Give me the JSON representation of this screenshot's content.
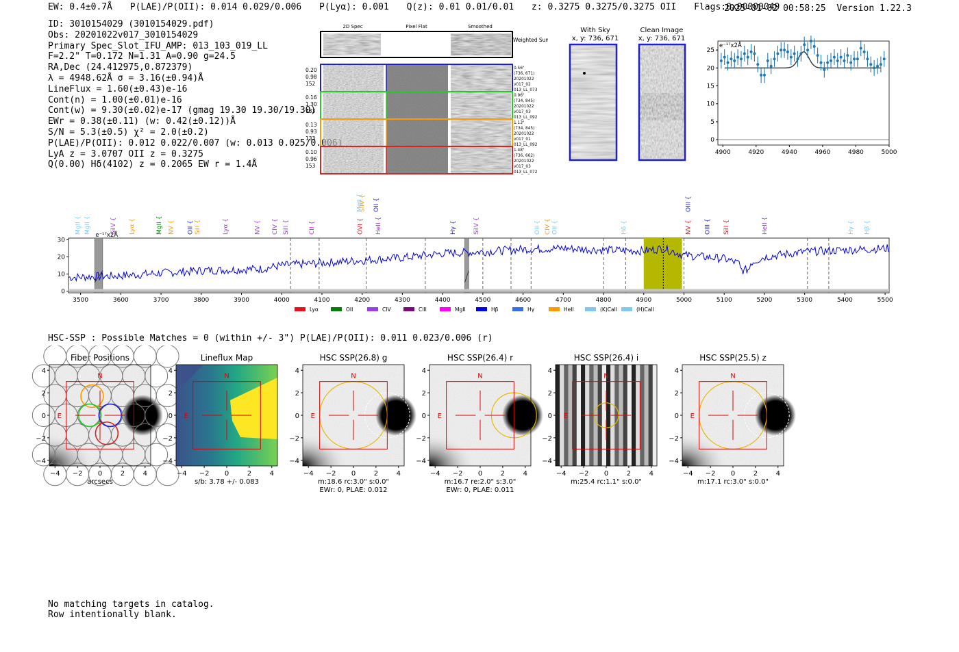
{
  "header": {
    "ew": "EW: 0.4±0.7Å",
    "plae": "P(LAE)/P(OII): 0.014 0.029/0.006",
    "plya": "P(Lyα): 0.001",
    "qz": "Q(z): 0.01 0.01/0.01",
    "z": "z: 0.3275 0.3275/0.3275 OII",
    "flags": "Flags:0x00000049",
    "timestamp": "2025-01-02 00:58:25",
    "version": "Version 1.22.3"
  },
  "info_lines": [
    "ID: 3010154029 (3010154029.pdf)",
    "Obs: 20201022v017_3010154029",
    "Primary Spec_Slot_IFU_AMP: 013_103_019_LL",
    "F=2.2\"  T=0.172  N=1.31  A=0.90  g=24.5",
    "RA,Dec (24.412975,0.872379)",
    "λ = 4948.62Å  σ = 3.16(±0.94)Å",
    "LineFlux = 1.60(±0.43)e-16",
    "Cont(n) = 1.00(±0.01)e-16",
    "Cont(w) = 9.30(±0.02)e-17 (gmag 19.30 19.30/19.30)",
    "EWr = 0.38(±0.11) (w: 0.42(±0.12))Å",
    "S/N = 5.3(±0.5)  χ² = 2.0(±0.2)",
    "P(LAE)/P(OII): 0.012 0.022/0.007 (w: 0.013 0.025/0.006)",
    "LyA z = 3.0707  OII z = 0.3275",
    "Q(0.00) Hδ(4102) z = 0.2065  EW r = 1.4Å"
  ],
  "cutouts": {
    "column_headers": [
      "2D Spec",
      "Pixel Flat",
      "Smoothed"
    ],
    "weighted_label": "Weighted Sum",
    "rows": [
      {
        "left": [
          "0.20",
          "0.98",
          "152"
        ],
        "right": [
          "0.56\"",
          "(736, 671)",
          "20201022",
          "v017_02",
          "013_LL_073"
        ],
        "color": "#1f1fd0"
      },
      {
        "left": [
          "0.16",
          "1.30",
          "133"
        ],
        "right": [
          "0.96\"",
          "(734, 845)",
          "20201022",
          "v017_03",
          "013_LL_092"
        ],
        "color": "#22cc22"
      },
      {
        "left": [
          "0.13",
          "0.93",
          "133"
        ],
        "right": [
          "1.13\"",
          "(734, 845)",
          "20201022",
          "v017_01",
          "013_LL_092"
        ],
        "color": "#ff9900"
      },
      {
        "left": [
          "0.10",
          "0.96",
          "153"
        ],
        "right": [
          "1.48\"",
          "(736, 662)",
          "20201022",
          "v017_03",
          "013_LL_072"
        ],
        "color": "#dd2222"
      }
    ]
  },
  "sky_images": {
    "with_sky_title": "With Sky",
    "with_sky_coords": "x, y: 736, 671",
    "clean_title": "Clean Image",
    "clean_coords": "x, y: 736, 671"
  },
  "chart_data": [
    {
      "name": "zoom_spectrum",
      "type": "line",
      "ylabel_note": "e⁻¹⁷x2Å",
      "xlim": [
        4897,
        5000
      ],
      "ylim": [
        -1.5,
        27.5
      ],
      "xticks": [
        4900,
        4920,
        4940,
        4960,
        4980,
        5000
      ],
      "yticks": [
        0,
        5,
        10,
        15,
        20,
        25
      ],
      "data_x": [
        4899,
        4901,
        4903,
        4905,
        4907,
        4909,
        4911,
        4913,
        4915,
        4917,
        4919,
        4921,
        4923,
        4925,
        4927,
        4929,
        4931,
        4933,
        4935,
        4937,
        4939,
        4941,
        4943,
        4945,
        4947,
        4949,
        4951,
        4953,
        4955,
        4957,
        4959,
        4961,
        4963,
        4965,
        4967,
        4969,
        4971,
        4973,
        4975,
        4977,
        4979,
        4981,
        4983,
        4985,
        4987,
        4989,
        4991,
        4993,
        4995,
        4997
      ],
      "data_y": [
        22,
        23,
        21.5,
        22.5,
        22,
        23,
        22.5,
        24,
        23,
        24.5,
        24,
        21,
        18,
        18,
        22,
        20.5,
        22.5,
        24,
        25,
        25,
        24.5,
        23,
        24,
        22.5,
        24,
        26.5,
        25,
        27.5,
        26,
        23.5,
        21.5,
        19.5,
        21.5,
        22,
        23,
        22,
        23,
        22,
        23.5,
        21.5,
        22.5,
        22.5,
        25.5,
        24.5,
        22.5,
        21,
        20,
        20.5,
        21,
        22.5
      ],
      "error": 2.2,
      "fit": {
        "continuum": 20,
        "center": 4948.62,
        "sigma": 3.16,
        "amplitude": 4.5
      }
    },
    {
      "name": "full_spectrum",
      "type": "line",
      "ylabel_note": "e⁻¹⁷x2Å",
      "xlim": [
        3470,
        5510
      ],
      "ylim": [
        -1,
        31
      ],
      "xticks": [
        3500,
        3600,
        3700,
        3800,
        3900,
        4000,
        4100,
        4200,
        4300,
        4400,
        4500,
        4600,
        4700,
        4800,
        4900,
        5000,
        5100,
        5200,
        5300,
        5400,
        5500
      ],
      "yticks": [
        0,
        10,
        20,
        30
      ],
      "trend": [
        [
          3470,
          8
        ],
        [
          3600,
          9
        ],
        [
          3800,
          12
        ],
        [
          3950,
          13
        ],
        [
          4000,
          15
        ],
        [
          4100,
          16.5
        ],
        [
          4200,
          18
        ],
        [
          4300,
          19.5
        ],
        [
          4400,
          22
        ],
        [
          4500,
          23
        ],
        [
          4600,
          24.5
        ],
        [
          4700,
          25
        ],
        [
          4800,
          24
        ],
        [
          4900,
          23.5
        ],
        [
          4950,
          25
        ],
        [
          5000,
          21
        ],
        [
          5050,
          20
        ],
        [
          5100,
          19
        ],
        [
          5150,
          15
        ],
        [
          5200,
          20
        ],
        [
          5300,
          23
        ],
        [
          5400,
          24
        ],
        [
          5510,
          25
        ]
      ],
      "highlight_band": [
        4900,
        4995
      ],
      "line_center": 4948.62,
      "masked_bands": [
        [
          3535,
          3555
        ],
        [
          4455,
          4465
        ]
      ],
      "dashed_lines": [
        4022,
        4093,
        4210,
        4357,
        4500,
        4570,
        4620,
        4800,
        4855,
        5000,
        5307,
        5360
      ],
      "legend": [
        {
          "label": "Lyα",
          "color": "#e8101a"
        },
        {
          "label": "OII",
          "color": "#0a7a0a"
        },
        {
          "label": "CIV",
          "color": "#9b3fe0"
        },
        {
          "label": "CIII",
          "color": "#7a0a7a"
        },
        {
          "label": "MgII",
          "color": "#ff00ff"
        },
        {
          "label": "Hβ",
          "color": "#0000ee"
        },
        {
          "label": "Hγ",
          "color": "#3a6ee8"
        },
        {
          "label": "HeII",
          "color": "#ff9900"
        },
        {
          "label": "(K)CaII",
          "color": "#80c8ee"
        },
        {
          "label": "(H)CaII",
          "color": "#80c8ee"
        }
      ],
      "line_labels": [
        {
          "text": "MgII",
          "x": 3498,
          "row": 0,
          "color": "#80c8ee"
        },
        {
          "text": "MgII",
          "x": 3521,
          "row": 0,
          "color": "#80c8ee"
        },
        {
          "text": "SiIV",
          "x": 3586,
          "row": 0,
          "color": "#9b3fe0"
        },
        {
          "text": "Lyα",
          "x": 3633,
          "row": 0,
          "color": "#ff9900"
        },
        {
          "text": "MgII",
          "x": 3700,
          "row": 0,
          "color": "#0a7a0a"
        },
        {
          "text": "NV",
          "x": 3730,
          "row": 0,
          "color": "#ff9900"
        },
        {
          "text": "OII",
          "x": 3777,
          "row": 0,
          "color": "#1f1fd0"
        },
        {
          "text": "SiII",
          "x": 3795,
          "row": 0,
          "color": "#ff9900"
        },
        {
          "text": "Lyα",
          "x": 3865,
          "row": 0,
          "color": "#9b3fe0"
        },
        {
          "text": "NV",
          "x": 3944,
          "row": 0,
          "color": "#9b3fe0"
        },
        {
          "text": "CIV",
          "x": 3988,
          "row": 0,
          "color": "#9b3fe0"
        },
        {
          "text": "SiII",
          "x": 4015,
          "row": 0,
          "color": "#9b3fe0"
        },
        {
          "text": "CII",
          "x": 4080,
          "row": 0,
          "color": "#ff00ff"
        },
        {
          "text": "OVI",
          "x": 4200,
          "row": 0,
          "color": "#e8101a"
        },
        {
          "text": "HeII",
          "x": 4245,
          "row": 0,
          "color": "#9b3fe0"
        },
        {
          "text": "SiIV",
          "x": 4205,
          "row": 1,
          "color": "#ff9900"
        },
        {
          "text": "MgII",
          "x": 4198,
          "row": 1,
          "color": "#80c8ee"
        },
        {
          "text": "OII",
          "x": 4240,
          "row": 1,
          "color": "#1f1fd0"
        },
        {
          "text": "Hγ",
          "x": 4430,
          "row": 0,
          "color": "#1f1fd0"
        },
        {
          "text": "SiIV",
          "x": 4488,
          "row": 0,
          "color": "#9b3fe0"
        },
        {
          "text": "OII",
          "x": 4640,
          "row": 0,
          "color": "#80c8ee"
        },
        {
          "text": "CIV",
          "x": 4665,
          "row": 0,
          "color": "#ff9900"
        },
        {
          "text": "OII",
          "x": 4683,
          "row": 0,
          "color": "#80c8ee"
        },
        {
          "text": "Hδ",
          "x": 4855,
          "row": 0,
          "color": "#80c8ee"
        },
        {
          "text": "NV",
          "x": 5015,
          "row": 0,
          "color": "#e8101a"
        },
        {
          "text": "OIII",
          "x": 5015,
          "row": 1,
          "color": "#1f1fd0"
        },
        {
          "text": "OIII",
          "x": 5063,
          "row": 0,
          "color": "#1f1fd0"
        },
        {
          "text": "SiII",
          "x": 5110,
          "row": 0,
          "color": "#e8101a"
        },
        {
          "text": "HeII",
          "x": 5205,
          "row": 0,
          "color": "#9b3fe0"
        },
        {
          "text": "Hγ",
          "x": 5420,
          "row": 0,
          "color": "#80c8ee"
        },
        {
          "text": "Hβ",
          "x": 5460,
          "row": 0,
          "color": "#80c8ee"
        }
      ]
    }
  ],
  "hsc": {
    "title": "HSC-SSP : Possible Matches = 0 (within +/- 3\")  P(LAE)/P(OII): 0.011 0.023/0.006 (r)",
    "axis_ticks": [
      "4",
      "2",
      "0",
      "−2",
      "−4"
    ],
    "x_ticks": [
      "−4",
      "−2",
      "0",
      "2",
      "4"
    ],
    "n_label": "N",
    "e_label": "E",
    "panels": [
      {
        "title": "Fiber Positions",
        "caption": [
          "arcsecs"
        ],
        "kind": "fibers"
      },
      {
        "title": "Lineflux Map",
        "caption": [
          "s/b: 3.78 +/- 0.083"
        ],
        "kind": "flux"
      },
      {
        "title": "HSC SSP(26.8) g",
        "caption": [
          "m:18.6 rc:3.0\"   s:0.0\"",
          "EWr: 0, PLAE: 0.012"
        ],
        "kind": "g"
      },
      {
        "title": "HSC SSP(26.4) r",
        "caption": [
          "m:16.7  re:2.0\"  s:3.0\"",
          "EWr: 0, PLAE: 0.011"
        ],
        "kind": "r"
      },
      {
        "title": "HSC SSP(26.4) i",
        "caption": [
          "m:25.4 rc:1.1\"   s:0.0\""
        ],
        "kind": "i"
      },
      {
        "title": "HSC SSP(25.5) z",
        "caption": [
          "m:17.1 rc:3.0\"   s:0.0\""
        ],
        "kind": "z"
      }
    ]
  },
  "footer": [
    "No matching targets in catalog.",
    "Row intentionally blank."
  ]
}
